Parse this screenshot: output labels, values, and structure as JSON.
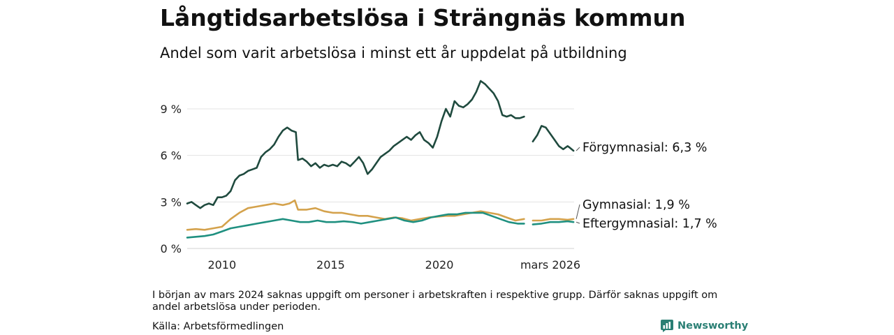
{
  "title": "Långtidsarbetslösa i Strängnäs kommun",
  "subtitle": "Andel som varit arbetslösa i minst ett år uppdelat på utbildning",
  "note": "I början av mars 2024 saknas uppgift om personer i arbetskraften i respektive grupp. Därför saknas uppgift om andel arbetslösa under perioden.",
  "source": "Källa: Arbetsförmedlingen",
  "brand": "Newsworthy",
  "brand_color": "#2a7f74",
  "chart_data": {
    "type": "line",
    "title": "Långtidsarbetslösa i Strängnäs kommun",
    "xlabel": "",
    "ylabel": "",
    "xlim": [
      2008.4,
      2026.2
    ],
    "ylim": [
      0,
      10.8
    ],
    "grid": true,
    "yticks": [
      0,
      3,
      6,
      9
    ],
    "ytick_labels": [
      "0 %",
      "3 %",
      "6 %",
      "9 %"
    ],
    "xticks": [
      2010,
      2015,
      2020,
      2026.17
    ],
    "xtick_labels": [
      "2010",
      "2015",
      "2020",
      "mars 2026"
    ],
    "gap": [
      2023.9,
      2024.3
    ],
    "series": [
      {
        "name": "Förgymnasial",
        "label": "Förgymnasial: 6,3 %",
        "color": "#1f4a3e",
        "points": [
          [
            2008.4,
            2.9
          ],
          [
            2008.6,
            3.0
          ],
          [
            2008.8,
            2.8
          ],
          [
            2009.0,
            2.6
          ],
          [
            2009.2,
            2.8
          ],
          [
            2009.4,
            2.9
          ],
          [
            2009.6,
            2.8
          ],
          [
            2009.8,
            3.3
          ],
          [
            2010.0,
            3.3
          ],
          [
            2010.2,
            3.4
          ],
          [
            2010.4,
            3.7
          ],
          [
            2010.6,
            4.4
          ],
          [
            2010.8,
            4.7
          ],
          [
            2011.0,
            4.8
          ],
          [
            2011.2,
            5.0
          ],
          [
            2011.4,
            5.1
          ],
          [
            2011.6,
            5.2
          ],
          [
            2011.8,
            5.9
          ],
          [
            2012.0,
            6.2
          ],
          [
            2012.2,
            6.4
          ],
          [
            2012.4,
            6.7
          ],
          [
            2012.6,
            7.2
          ],
          [
            2012.8,
            7.6
          ],
          [
            2013.0,
            7.8
          ],
          [
            2013.2,
            7.6
          ],
          [
            2013.4,
            7.5
          ],
          [
            2013.5,
            5.7
          ],
          [
            2013.7,
            5.8
          ],
          [
            2013.9,
            5.6
          ],
          [
            2014.1,
            5.3
          ],
          [
            2014.3,
            5.5
          ],
          [
            2014.5,
            5.2
          ],
          [
            2014.7,
            5.4
          ],
          [
            2014.9,
            5.3
          ],
          [
            2015.1,
            5.4
          ],
          [
            2015.3,
            5.3
          ],
          [
            2015.5,
            5.6
          ],
          [
            2015.7,
            5.5
          ],
          [
            2015.9,
            5.3
          ],
          [
            2016.1,
            5.6
          ],
          [
            2016.3,
            5.9
          ],
          [
            2016.5,
            5.5
          ],
          [
            2016.7,
            4.8
          ],
          [
            2016.9,
            5.1
          ],
          [
            2017.1,
            5.5
          ],
          [
            2017.3,
            5.9
          ],
          [
            2017.5,
            6.1
          ],
          [
            2017.7,
            6.3
          ],
          [
            2017.9,
            6.6
          ],
          [
            2018.1,
            6.8
          ],
          [
            2018.3,
            7.0
          ],
          [
            2018.5,
            7.2
          ],
          [
            2018.7,
            7.0
          ],
          [
            2018.9,
            7.3
          ],
          [
            2019.1,
            7.5
          ],
          [
            2019.3,
            7.0
          ],
          [
            2019.5,
            6.8
          ],
          [
            2019.7,
            6.5
          ],
          [
            2019.9,
            7.2
          ],
          [
            2020.1,
            8.2
          ],
          [
            2020.3,
            9.0
          ],
          [
            2020.5,
            8.5
          ],
          [
            2020.7,
            9.5
          ],
          [
            2020.9,
            9.2
          ],
          [
            2021.1,
            9.1
          ],
          [
            2021.3,
            9.3
          ],
          [
            2021.5,
            9.6
          ],
          [
            2021.7,
            10.1
          ],
          [
            2021.9,
            10.8
          ],
          [
            2022.1,
            10.6
          ],
          [
            2022.3,
            10.3
          ],
          [
            2022.5,
            10.0
          ],
          [
            2022.7,
            9.5
          ],
          [
            2022.9,
            8.6
          ],
          [
            2023.1,
            8.5
          ],
          [
            2023.3,
            8.6
          ],
          [
            2023.5,
            8.4
          ],
          [
            2023.7,
            8.4
          ],
          [
            2023.9,
            8.5
          ],
          [
            2024.3,
            6.9
          ],
          [
            2024.5,
            7.3
          ],
          [
            2024.7,
            7.9
          ],
          [
            2024.9,
            7.8
          ],
          [
            2025.1,
            7.4
          ],
          [
            2025.3,
            7.0
          ],
          [
            2025.5,
            6.6
          ],
          [
            2025.7,
            6.4
          ],
          [
            2025.9,
            6.6
          ],
          [
            2026.0,
            6.5
          ],
          [
            2026.17,
            6.3
          ]
        ]
      },
      {
        "name": "Gymnasial",
        "label": "Gymnasial: 1,9 %",
        "color": "#d4a24c",
        "points": [
          [
            2008.4,
            1.2
          ],
          [
            2008.8,
            1.25
          ],
          [
            2009.2,
            1.2
          ],
          [
            2009.6,
            1.3
          ],
          [
            2010.0,
            1.4
          ],
          [
            2010.4,
            1.9
          ],
          [
            2010.8,
            2.3
          ],
          [
            2011.2,
            2.6
          ],
          [
            2011.6,
            2.7
          ],
          [
            2012.0,
            2.8
          ],
          [
            2012.4,
            2.9
          ],
          [
            2012.8,
            2.8
          ],
          [
            2013.1,
            2.9
          ],
          [
            2013.35,
            3.1
          ],
          [
            2013.5,
            2.5
          ],
          [
            2013.9,
            2.5
          ],
          [
            2014.3,
            2.6
          ],
          [
            2014.7,
            2.4
          ],
          [
            2015.1,
            2.3
          ],
          [
            2015.5,
            2.3
          ],
          [
            2015.9,
            2.2
          ],
          [
            2016.3,
            2.1
          ],
          [
            2016.7,
            2.1
          ],
          [
            2017.1,
            2.0
          ],
          [
            2017.5,
            1.9
          ],
          [
            2017.9,
            2.0
          ],
          [
            2018.3,
            1.95
          ],
          [
            2018.7,
            1.8
          ],
          [
            2019.1,
            1.9
          ],
          [
            2019.5,
            2.0
          ],
          [
            2019.9,
            2.05
          ],
          [
            2020.3,
            2.1
          ],
          [
            2020.7,
            2.1
          ],
          [
            2021.1,
            2.2
          ],
          [
            2021.5,
            2.3
          ],
          [
            2021.9,
            2.4
          ],
          [
            2022.3,
            2.3
          ],
          [
            2022.7,
            2.2
          ],
          [
            2023.1,
            2.0
          ],
          [
            2023.5,
            1.8
          ],
          [
            2023.9,
            1.9
          ],
          [
            2024.3,
            1.8
          ],
          [
            2024.7,
            1.8
          ],
          [
            2025.1,
            1.9
          ],
          [
            2025.5,
            1.9
          ],
          [
            2025.9,
            1.85
          ],
          [
            2026.17,
            1.9
          ]
        ]
      },
      {
        "name": "Eftergymnasial",
        "label": "Eftergymnasial: 1,7 %",
        "color": "#1f9080",
        "points": [
          [
            2008.4,
            0.7
          ],
          [
            2008.8,
            0.75
          ],
          [
            2009.2,
            0.8
          ],
          [
            2009.6,
            0.9
          ],
          [
            2010.0,
            1.1
          ],
          [
            2010.4,
            1.3
          ],
          [
            2010.8,
            1.4
          ],
          [
            2011.2,
            1.5
          ],
          [
            2011.6,
            1.6
          ],
          [
            2012.0,
            1.7
          ],
          [
            2012.4,
            1.8
          ],
          [
            2012.8,
            1.9
          ],
          [
            2013.2,
            1.8
          ],
          [
            2013.6,
            1.7
          ],
          [
            2014.0,
            1.7
          ],
          [
            2014.4,
            1.8
          ],
          [
            2014.8,
            1.7
          ],
          [
            2015.2,
            1.7
          ],
          [
            2015.6,
            1.75
          ],
          [
            2016.0,
            1.7
          ],
          [
            2016.4,
            1.6
          ],
          [
            2016.8,
            1.7
          ],
          [
            2017.2,
            1.8
          ],
          [
            2017.6,
            1.9
          ],
          [
            2018.0,
            2.0
          ],
          [
            2018.4,
            1.8
          ],
          [
            2018.8,
            1.7
          ],
          [
            2019.2,
            1.8
          ],
          [
            2019.6,
            2.0
          ],
          [
            2020.0,
            2.1
          ],
          [
            2020.4,
            2.2
          ],
          [
            2020.8,
            2.2
          ],
          [
            2021.2,
            2.3
          ],
          [
            2021.6,
            2.3
          ],
          [
            2022.0,
            2.3
          ],
          [
            2022.4,
            2.1
          ],
          [
            2022.8,
            1.9
          ],
          [
            2023.2,
            1.7
          ],
          [
            2023.6,
            1.6
          ],
          [
            2023.9,
            1.6
          ],
          [
            2024.3,
            1.55
          ],
          [
            2024.7,
            1.6
          ],
          [
            2025.1,
            1.7
          ],
          [
            2025.5,
            1.7
          ],
          [
            2025.9,
            1.75
          ],
          [
            2026.17,
            1.7
          ]
        ]
      }
    ]
  }
}
